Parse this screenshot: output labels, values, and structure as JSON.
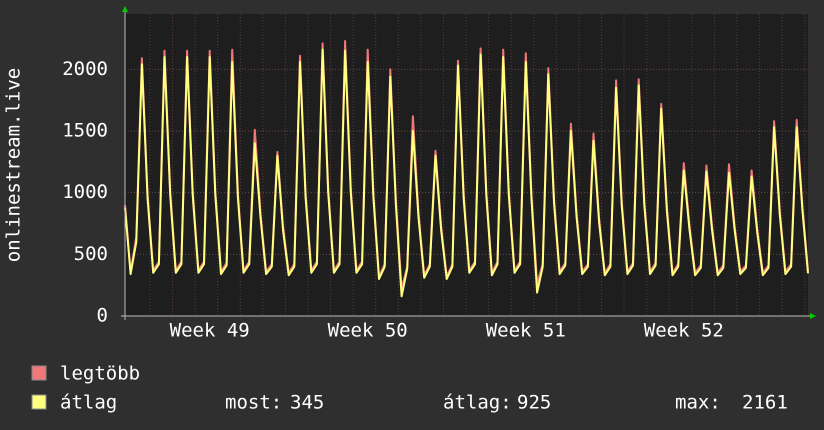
{
  "chart_data": {
    "type": "line",
    "y_label": "onlinestream.live",
    "categories": [
      null,
      null,
      null,
      null,
      null,
      null,
      null,
      null,
      null,
      null,
      null,
      null,
      null,
      null,
      null,
      "Week 49",
      null,
      null,
      null,
      null,
      null,
      null,
      null,
      null,
      null,
      null,
      null,
      null,
      null,
      null,
      null,
      null,
      null,
      null,
      null,
      null,
      null,
      null,
      null,
      null,
      null,
      null,
      null,
      "Week 50",
      null,
      null,
      null,
      null,
      null,
      null,
      null,
      null,
      null,
      null,
      null,
      null,
      null,
      null,
      null,
      null,
      null,
      null,
      null,
      null,
      null,
      null,
      null,
      null,
      null,
      null,
      null,
      "Week 51",
      null,
      null,
      null,
      null,
      null,
      null,
      null,
      null,
      null,
      null,
      null,
      null,
      null,
      null,
      null,
      null,
      null,
      null,
      null,
      null,
      null,
      null,
      null,
      null,
      null,
      null,
      null,
      "Week 52",
      null,
      null,
      null,
      null,
      null,
      null,
      null,
      null,
      null,
      null,
      null,
      null,
      null,
      null,
      null,
      null,
      null,
      null,
      null,
      null,
      null,
      null
    ],
    "series": [
      {
        "name": "legtöbb",
        "color": "#f07878",
        "values": [
          900,
          360,
          640,
          2090,
          980,
          370,
          440,
          2150,
          1010,
          370,
          440,
          2150,
          1010,
          370,
          440,
          2150,
          1010,
          360,
          430,
          2160,
          990,
          370,
          440,
          1510,
          830,
          360,
          420,
          1330,
          730,
          350,
          420,
          2110,
          990,
          370,
          440,
          2210,
          1030,
          370,
          440,
          2230,
          1030,
          370,
          440,
          2160,
          990,
          320,
          420,
          2000,
          930,
          220,
          400,
          1620,
          830,
          330,
          420,
          1340,
          730,
          320,
          420,
          2070,
          980,
          370,
          440,
          2170,
          1010,
          350,
          440,
          2160,
          1010,
          370,
          440,
          2130,
          990,
          260,
          420,
          2010,
          950,
          360,
          430,
          1560,
          830,
          360,
          420,
          1480,
          790,
          350,
          420,
          1910,
          930,
          360,
          430,
          1920,
          930,
          360,
          430,
          1720,
          880,
          350,
          420,
          1240,
          730,
          350,
          410,
          1220,
          730,
          350,
          410,
          1230,
          730,
          360,
          410,
          1180,
          710,
          350,
          410,
          1580,
          850,
          360,
          420,
          1590,
          890,
          365
        ]
      },
      {
        "name": "átlag",
        "color": "#ffff80",
        "values": [
          880,
          340,
          600,
          2040,
          950,
          350,
          420,
          2100,
          980,
          350,
          420,
          2100,
          980,
          350,
          420,
          2100,
          980,
          340,
          410,
          2060,
          960,
          350,
          420,
          1400,
          800,
          340,
          400,
          1300,
          700,
          330,
          400,
          2060,
          960,
          350,
          420,
          2160,
          1000,
          350,
          420,
          2150,
          1000,
          350,
          420,
          2060,
          960,
          300,
          400,
          1940,
          900,
          160,
          380,
          1500,
          800,
          310,
          400,
          1300,
          700,
          300,
          400,
          2030,
          950,
          350,
          420,
          2120,
          980,
          330,
          420,
          2100,
          980,
          350,
          420,
          2060,
          960,
          190,
          400,
          1960,
          920,
          340,
          410,
          1500,
          800,
          340,
          400,
          1420,
          760,
          330,
          400,
          1850,
          900,
          340,
          410,
          1870,
          900,
          340,
          410,
          1680,
          850,
          330,
          400,
          1180,
          700,
          330,
          390,
          1170,
          700,
          330,
          390,
          1160,
          700,
          340,
          390,
          1130,
          680,
          330,
          390,
          1530,
          820,
          340,
          400,
          1530,
          860,
          345
        ]
      }
    ],
    "stats": [
      {
        "label": "most:",
        "value": 345
      },
      {
        "label": "átlag:",
        "value": 925
      },
      {
        "label": "max:",
        "value": 2161
      }
    ],
    "ylim": [
      0,
      2400
    ],
    "yticks": [
      0,
      500,
      1000,
      1500,
      2000
    ],
    "grid": true
  }
}
